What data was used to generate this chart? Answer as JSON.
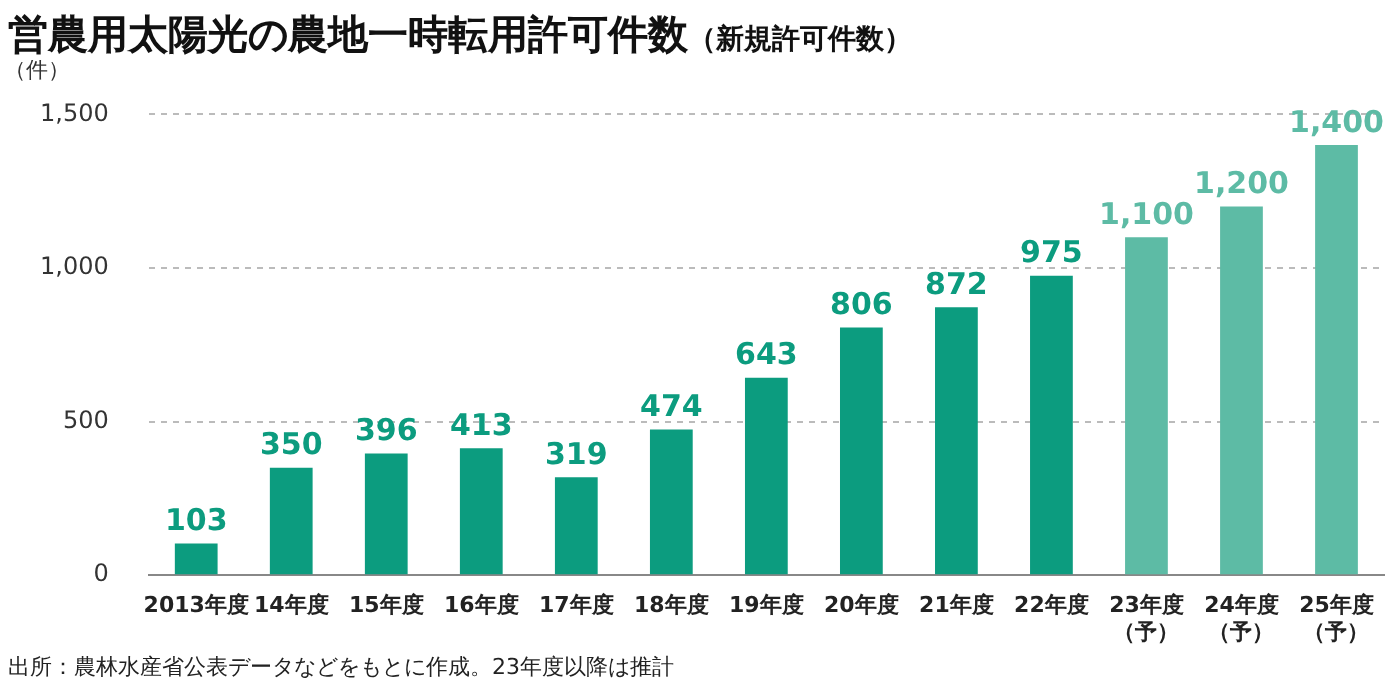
{
  "chart_data": {
    "type": "bar",
    "title": "営農用太陽光の農地一時転用許可件数",
    "subtitle": "（新規許可件数）",
    "ylabel": "（件）",
    "categories": [
      "2013年度",
      "14年度",
      "15年度",
      "16年度",
      "17年度",
      "18年度",
      "19年度",
      "20年度",
      "21年度",
      "22年度",
      "23年度（予）",
      "24年度（予）",
      "25年度（予）"
    ],
    "values": [
      103,
      350,
      396,
      413,
      319,
      474,
      643,
      806,
      872,
      975,
      1100,
      1200,
      1400
    ],
    "colors": [
      "#0c9c7f",
      "#0c9c7f",
      "#0c9c7f",
      "#0c9c7f",
      "#0c9c7f",
      "#0c9c7f",
      "#0c9c7f",
      "#0c9c7f",
      "#0c9c7f",
      "#0c9c7f",
      "#5dbba5",
      "#5dbba5",
      "#5dbba5"
    ],
    "value_labels": [
      "103",
      "350",
      "396",
      "413",
      "319",
      "474",
      "643",
      "806",
      "872",
      "975",
      "1,100",
      "1,200",
      "1,400"
    ],
    "ylim": [
      0,
      1500
    ],
    "yticks": [
      0,
      {
        "value": 500,
        "label": "500"
      },
      {
        "value": 1000,
        "label": "1,000"
      },
      {
        "value": 1500,
        "label": "1,500"
      }
    ],
    "grid": "y",
    "legend": false,
    "annotations": [
      "出所：農林水産省公表データなどをもとに作成。23年度以降は推計"
    ]
  }
}
